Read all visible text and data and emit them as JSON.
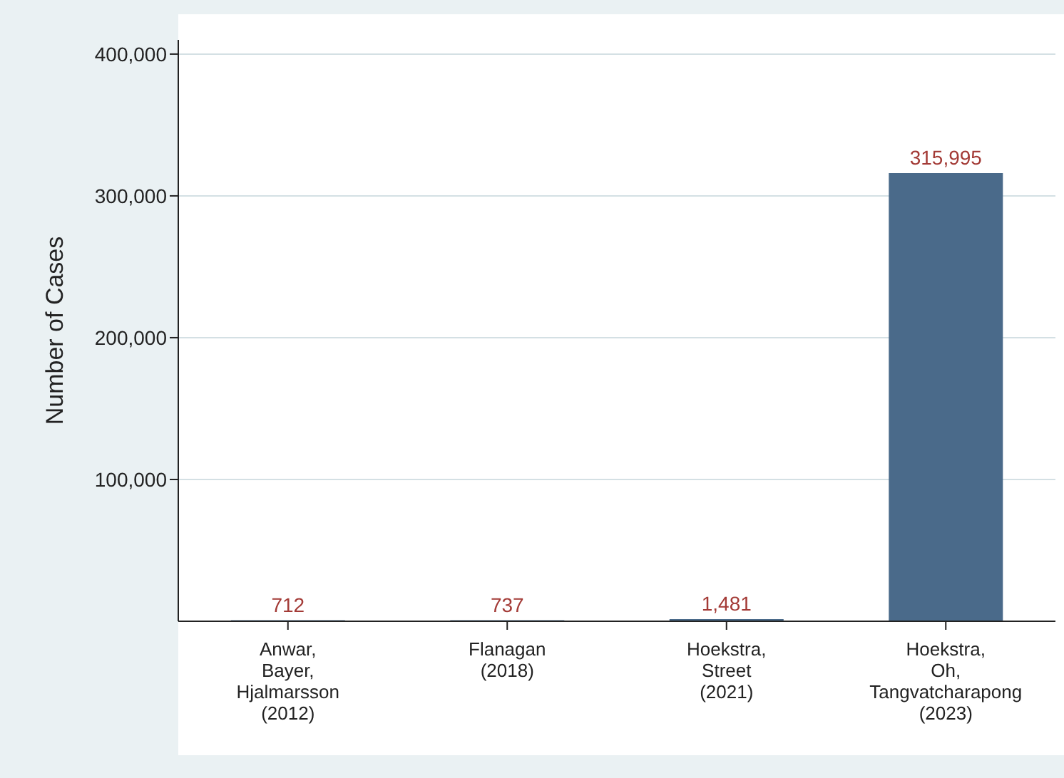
{
  "chart_data": {
    "type": "bar",
    "ylabel": "Number of Cases",
    "categories": [
      "Anwar, Bayer, Hjalmarsson (2012)",
      "Flanagan (2018)",
      "Hoekstra, Street (2021)",
      "Hoekstra, Oh, Tangvatcharapong (2023)"
    ],
    "values": [
      712,
      737,
      1481,
      315995
    ],
    "color": "#4a6a8a",
    "value_labels": [
      "712",
      "737",
      "1,481",
      "315,995"
    ],
    "ylim": [
      0,
      410000
    ],
    "yticks": [
      {
        "value": 100000,
        "label": "100,000"
      },
      {
        "value": 200000,
        "label": "200,000"
      },
      {
        "value": 300000,
        "label": "300,000"
      },
      {
        "value": 400000,
        "label": "400,000"
      }
    ],
    "grid": "y"
  }
}
